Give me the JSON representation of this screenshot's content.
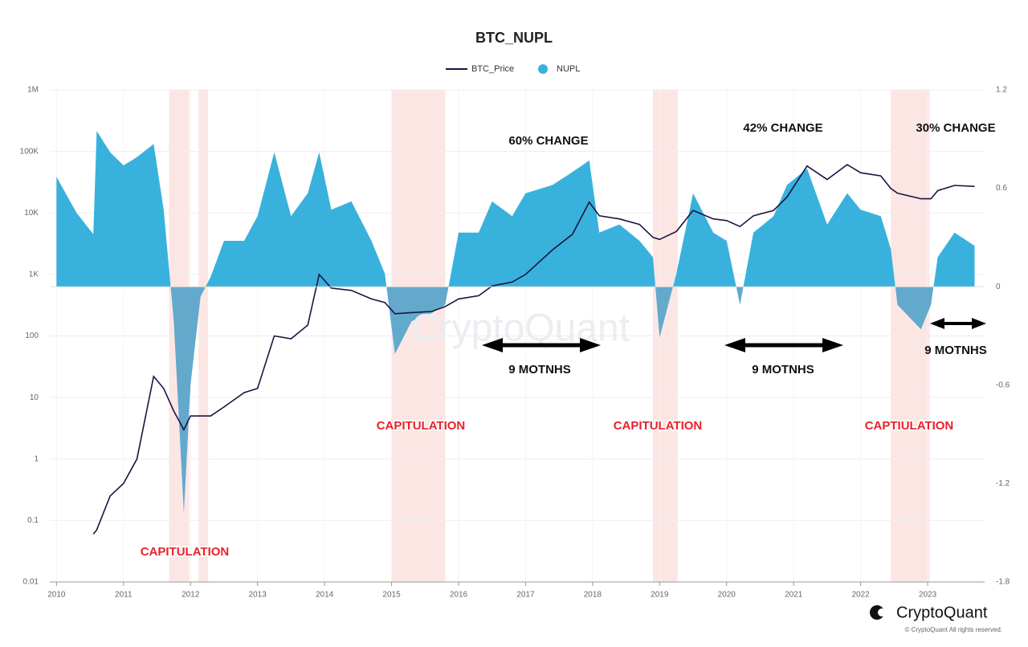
{
  "chart_data": {
    "type": "line-area",
    "title": "BTC_NUPL",
    "x": [
      2010.0,
      2010.3,
      2010.55,
      2010.6,
      2010.8,
      2011.0,
      2011.2,
      2011.45,
      2011.6,
      2011.75,
      2011.9,
      2012.0,
      2012.15,
      2012.3,
      2012.5,
      2012.8,
      2013.0,
      2013.25,
      2013.5,
      2013.75,
      2013.92,
      2014.1,
      2014.4,
      2014.7,
      2014.9,
      2015.05,
      2015.3,
      2015.6,
      2015.8,
      2016.0,
      2016.3,
      2016.5,
      2016.8,
      2017.0,
      2017.4,
      2017.7,
      2017.95,
      2018.1,
      2018.4,
      2018.7,
      2018.9,
      2019.0,
      2019.25,
      2019.5,
      2019.8,
      2020.0,
      2020.2,
      2020.4,
      2020.7,
      2020.9,
      2021.2,
      2021.5,
      2021.8,
      2022.0,
      2022.3,
      2022.45,
      2022.55,
      2022.9,
      2023.05,
      2023.15,
      2023.4,
      2023.7
    ],
    "series": [
      {
        "name": "BTC_Price",
        "color": "#1c1440",
        "kind": "line",
        "axis": "y",
        "values": [
          null,
          null,
          0.06,
          0.07,
          0.25,
          0.4,
          1.0,
          22,
          14,
          6,
          3.0,
          5,
          5,
          5,
          7,
          12,
          14,
          100,
          90,
          150,
          1000,
          600,
          550,
          400,
          350,
          230,
          240,
          250,
          300,
          400,
          450,
          650,
          750,
          1000,
          2500,
          4500,
          15000,
          9000,
          8000,
          6500,
          4000,
          3700,
          5000,
          11000,
          8000,
          7500,
          6000,
          9000,
          11000,
          18000,
          58000,
          35000,
          61000,
          45000,
          40000,
          25000,
          21000,
          17000,
          17000,
          23000,
          28000,
          27000
        ]
      },
      {
        "name": "NUPL",
        "color": "#38b2dc",
        "negative_color": "#62a9cc",
        "kind": "area",
        "axis": "y2",
        "values": [
          0.67,
          0.45,
          0.32,
          0.95,
          0.82,
          0.74,
          0.79,
          0.87,
          0.47,
          -0.21,
          -1.38,
          -0.6,
          -0.06,
          0.06,
          0.28,
          0.28,
          0.43,
          0.82,
          0.43,
          0.57,
          0.82,
          0.47,
          0.52,
          0.28,
          0.08,
          -0.41,
          -0.21,
          -0.16,
          -0.11,
          0.33,
          0.33,
          0.52,
          0.43,
          0.57,
          0.62,
          0.7,
          0.77,
          0.33,
          0.38,
          0.28,
          0.18,
          -0.31,
          0.08,
          0.57,
          0.33,
          0.28,
          -0.11,
          0.33,
          0.43,
          0.62,
          0.72,
          0.38,
          0.57,
          0.47,
          0.43,
          0.23,
          -0.11,
          -0.26,
          -0.11,
          0.18,
          0.33,
          0.25
        ]
      }
    ],
    "xlim": [
      2009.9,
      2023.85
    ],
    "xticks": [
      2010,
      2011,
      2012,
      2013,
      2014,
      2015,
      2016,
      2017,
      2018,
      2019,
      2020,
      2021,
      2022,
      2023
    ],
    "ylog": true,
    "ylim": [
      0.01,
      1000000
    ],
    "yticks": [
      0.01,
      0.1,
      1,
      10,
      100,
      {
        "value": 1000,
        "label": "1K"
      },
      {
        "value": 10000,
        "label": "10K"
      },
      {
        "value": 100000,
        "label": "100K"
      },
      {
        "value": 1000000,
        "label": "1M"
      }
    ],
    "y2lim": [
      -1.8,
      1.2
    ],
    "y2ticks": [
      -1.8,
      -1.2,
      -0.6,
      0,
      0.6,
      1.2
    ],
    "grid": true,
    "legend": "top",
    "bands": [
      {
        "from": 2011.68,
        "to": 2011.98
      },
      {
        "from": 2012.12,
        "to": 2012.26
      },
      {
        "from": 2015.0,
        "to": 2015.8
      },
      {
        "from": 2018.9,
        "to": 2019.27
      },
      {
        "from": 2022.45,
        "to": 2023.03
      }
    ],
    "band_color": "#fce6e4",
    "annotations": [
      "60% CHANGE",
      "42% CHANGE",
      "30% CHANGE",
      "9 MOTNHS",
      "9 MOTNHS",
      "9 MOTNHS",
      "CAPITULATION",
      "CAPITULATION",
      "CAPITULATION",
      "CAPTIULATION"
    ],
    "watermark": "CryptoQuant",
    "brand": "CryptoQuant",
    "copyright": "© CryptoQuant All rights reserved."
  }
}
